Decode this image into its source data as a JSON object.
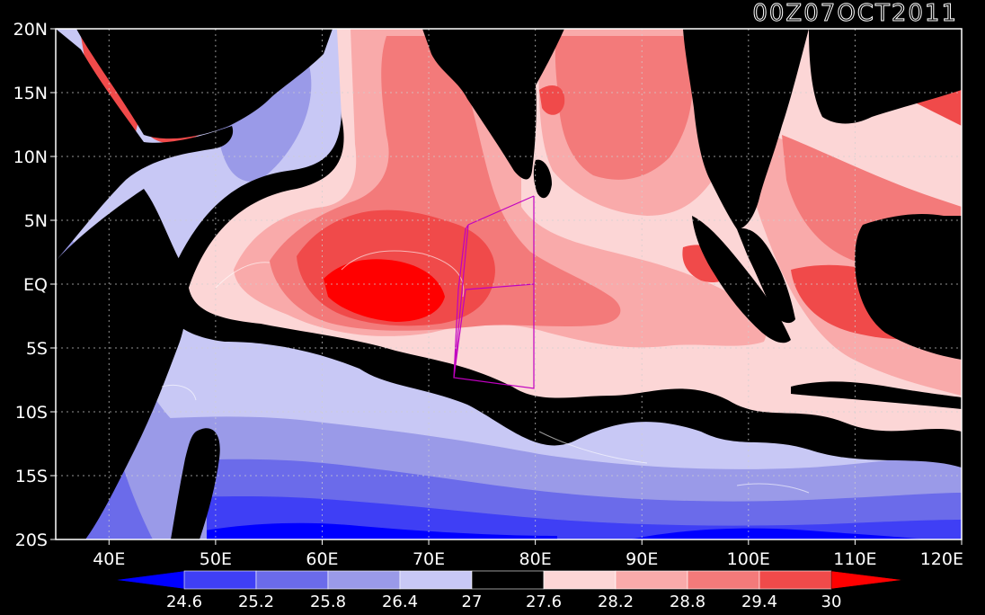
{
  "title": "00Z07OCT2011",
  "map": {
    "lon_range": [
      35,
      120
    ],
    "lat_range": [
      -20,
      20
    ],
    "lat_ticks": [
      {
        "value": 20,
        "label": "20N"
      },
      {
        "value": 15,
        "label": "15N"
      },
      {
        "value": 10,
        "label": "10N"
      },
      {
        "value": 5,
        "label": "5N"
      },
      {
        "value": 0,
        "label": "EQ"
      },
      {
        "value": -5,
        "label": "5S"
      },
      {
        "value": -10,
        "label": "10S"
      },
      {
        "value": -15,
        "label": "15S"
      },
      {
        "value": -20,
        "label": "20S"
      }
    ],
    "lon_ticks": [
      {
        "value": 40,
        "label": "40E"
      },
      {
        "value": 50,
        "label": "50E"
      },
      {
        "value": 60,
        "label": "60E"
      },
      {
        "value": 70,
        "label": "70E"
      },
      {
        "value": 80,
        "label": "80E"
      },
      {
        "value": 90,
        "label": "90E"
      },
      {
        "value": 100,
        "label": "100E"
      },
      {
        "value": 110,
        "label": "110E"
      },
      {
        "value": 120,
        "label": "120E"
      }
    ],
    "grid": "dotted",
    "box_west_lonlat": [
      [
        72.4,
        -7.5
      ],
      [
        72.8,
        0.5
      ],
      [
        74.1,
        4.5
      ],
      [
        73.8,
        4.5
      ]
    ],
    "box_east_lonlat": [
      [
        73,
        0.5
      ],
      [
        80,
        0
      ],
      [
        80,
        -8
      ],
      [
        72.4,
        -7.5
      ]
    ],
    "box_color": "#c000c0"
  },
  "colorbar": {
    "levels": [
      "24.6",
      "25.2",
      "25.8",
      "26.4",
      "27",
      "27.6",
      "28.2",
      "28.8",
      "29.4",
      "30"
    ],
    "colors": [
      "#0000ff",
      "#3f3ff5",
      "#6b6bea",
      "#9a9ae8",
      "#c8c8f5",
      "#000000",
      "#fcd6d6",
      "#f9aaaa",
      "#f37a7a",
      "#f04a4a",
      "#ff0000"
    ]
  }
}
